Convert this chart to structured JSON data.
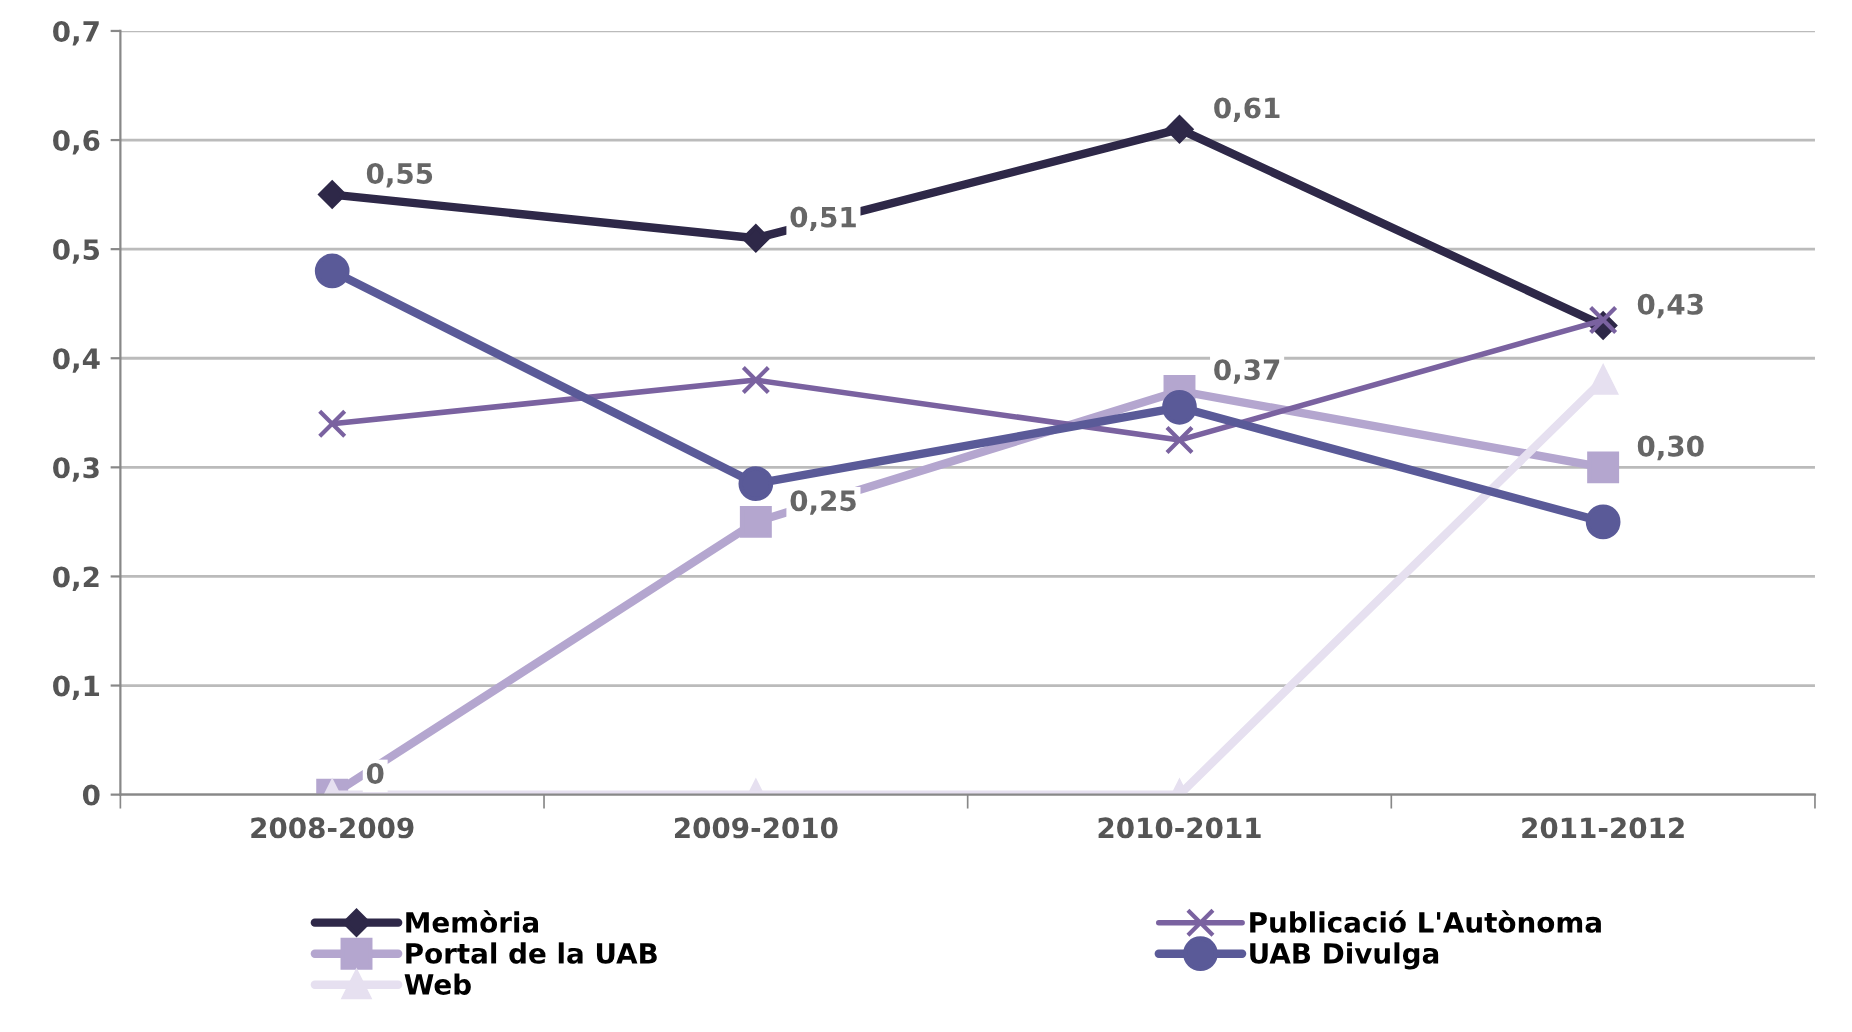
{
  "chart_data": {
    "type": "line",
    "categories": [
      "2008-2009",
      "2009-2010",
      "2010-2011",
      "2011-2012"
    ],
    "series": [
      {
        "name": "Memòria",
        "color": "#2e2848",
        "marker": "diamond",
        "values": [
          0.55,
          0.51,
          0.61,
          0.43
        ],
        "value_labels": [
          "0,55",
          "0,51",
          "0,61",
          "0,43"
        ]
      },
      {
        "name": "Portal de la UAB",
        "color": "#b4a6cf",
        "marker": "square",
        "values": [
          0,
          0.25,
          0.37,
          0.3
        ],
        "value_labels": [
          "0",
          "0,25",
          "0,37",
          "0,30"
        ]
      },
      {
        "name": "Web",
        "color": "#e6e0f0",
        "marker": "triangle",
        "values": [
          0,
          0,
          0,
          0.38
        ]
      },
      {
        "name": "Publicació L'Autònoma",
        "color": "#7a62a0",
        "marker": "cross",
        "values": [
          0.34,
          0.38,
          0.325,
          0.435
        ]
      },
      {
        "name": "UAB Divulga",
        "color": "#5a5a98",
        "marker": "circle",
        "values": [
          0.48,
          0.285,
          0.355,
          0.25
        ]
      }
    ],
    "ylim": [
      0,
      0.7
    ],
    "yticks": [
      {
        "value": 0,
        "label": "0"
      },
      {
        "value": 0.1,
        "label": "0,1"
      },
      {
        "value": 0.2,
        "label": "0,2"
      },
      {
        "value": 0.3,
        "label": "0,3"
      },
      {
        "value": 0.4,
        "label": "0,4"
      },
      {
        "value": 0.5,
        "label": "0,5"
      },
      {
        "value": 0.6,
        "label": "0,6"
      },
      {
        "value": 0.7,
        "label": "0,7"
      }
    ],
    "grid": "y",
    "legend": "bottom"
  }
}
